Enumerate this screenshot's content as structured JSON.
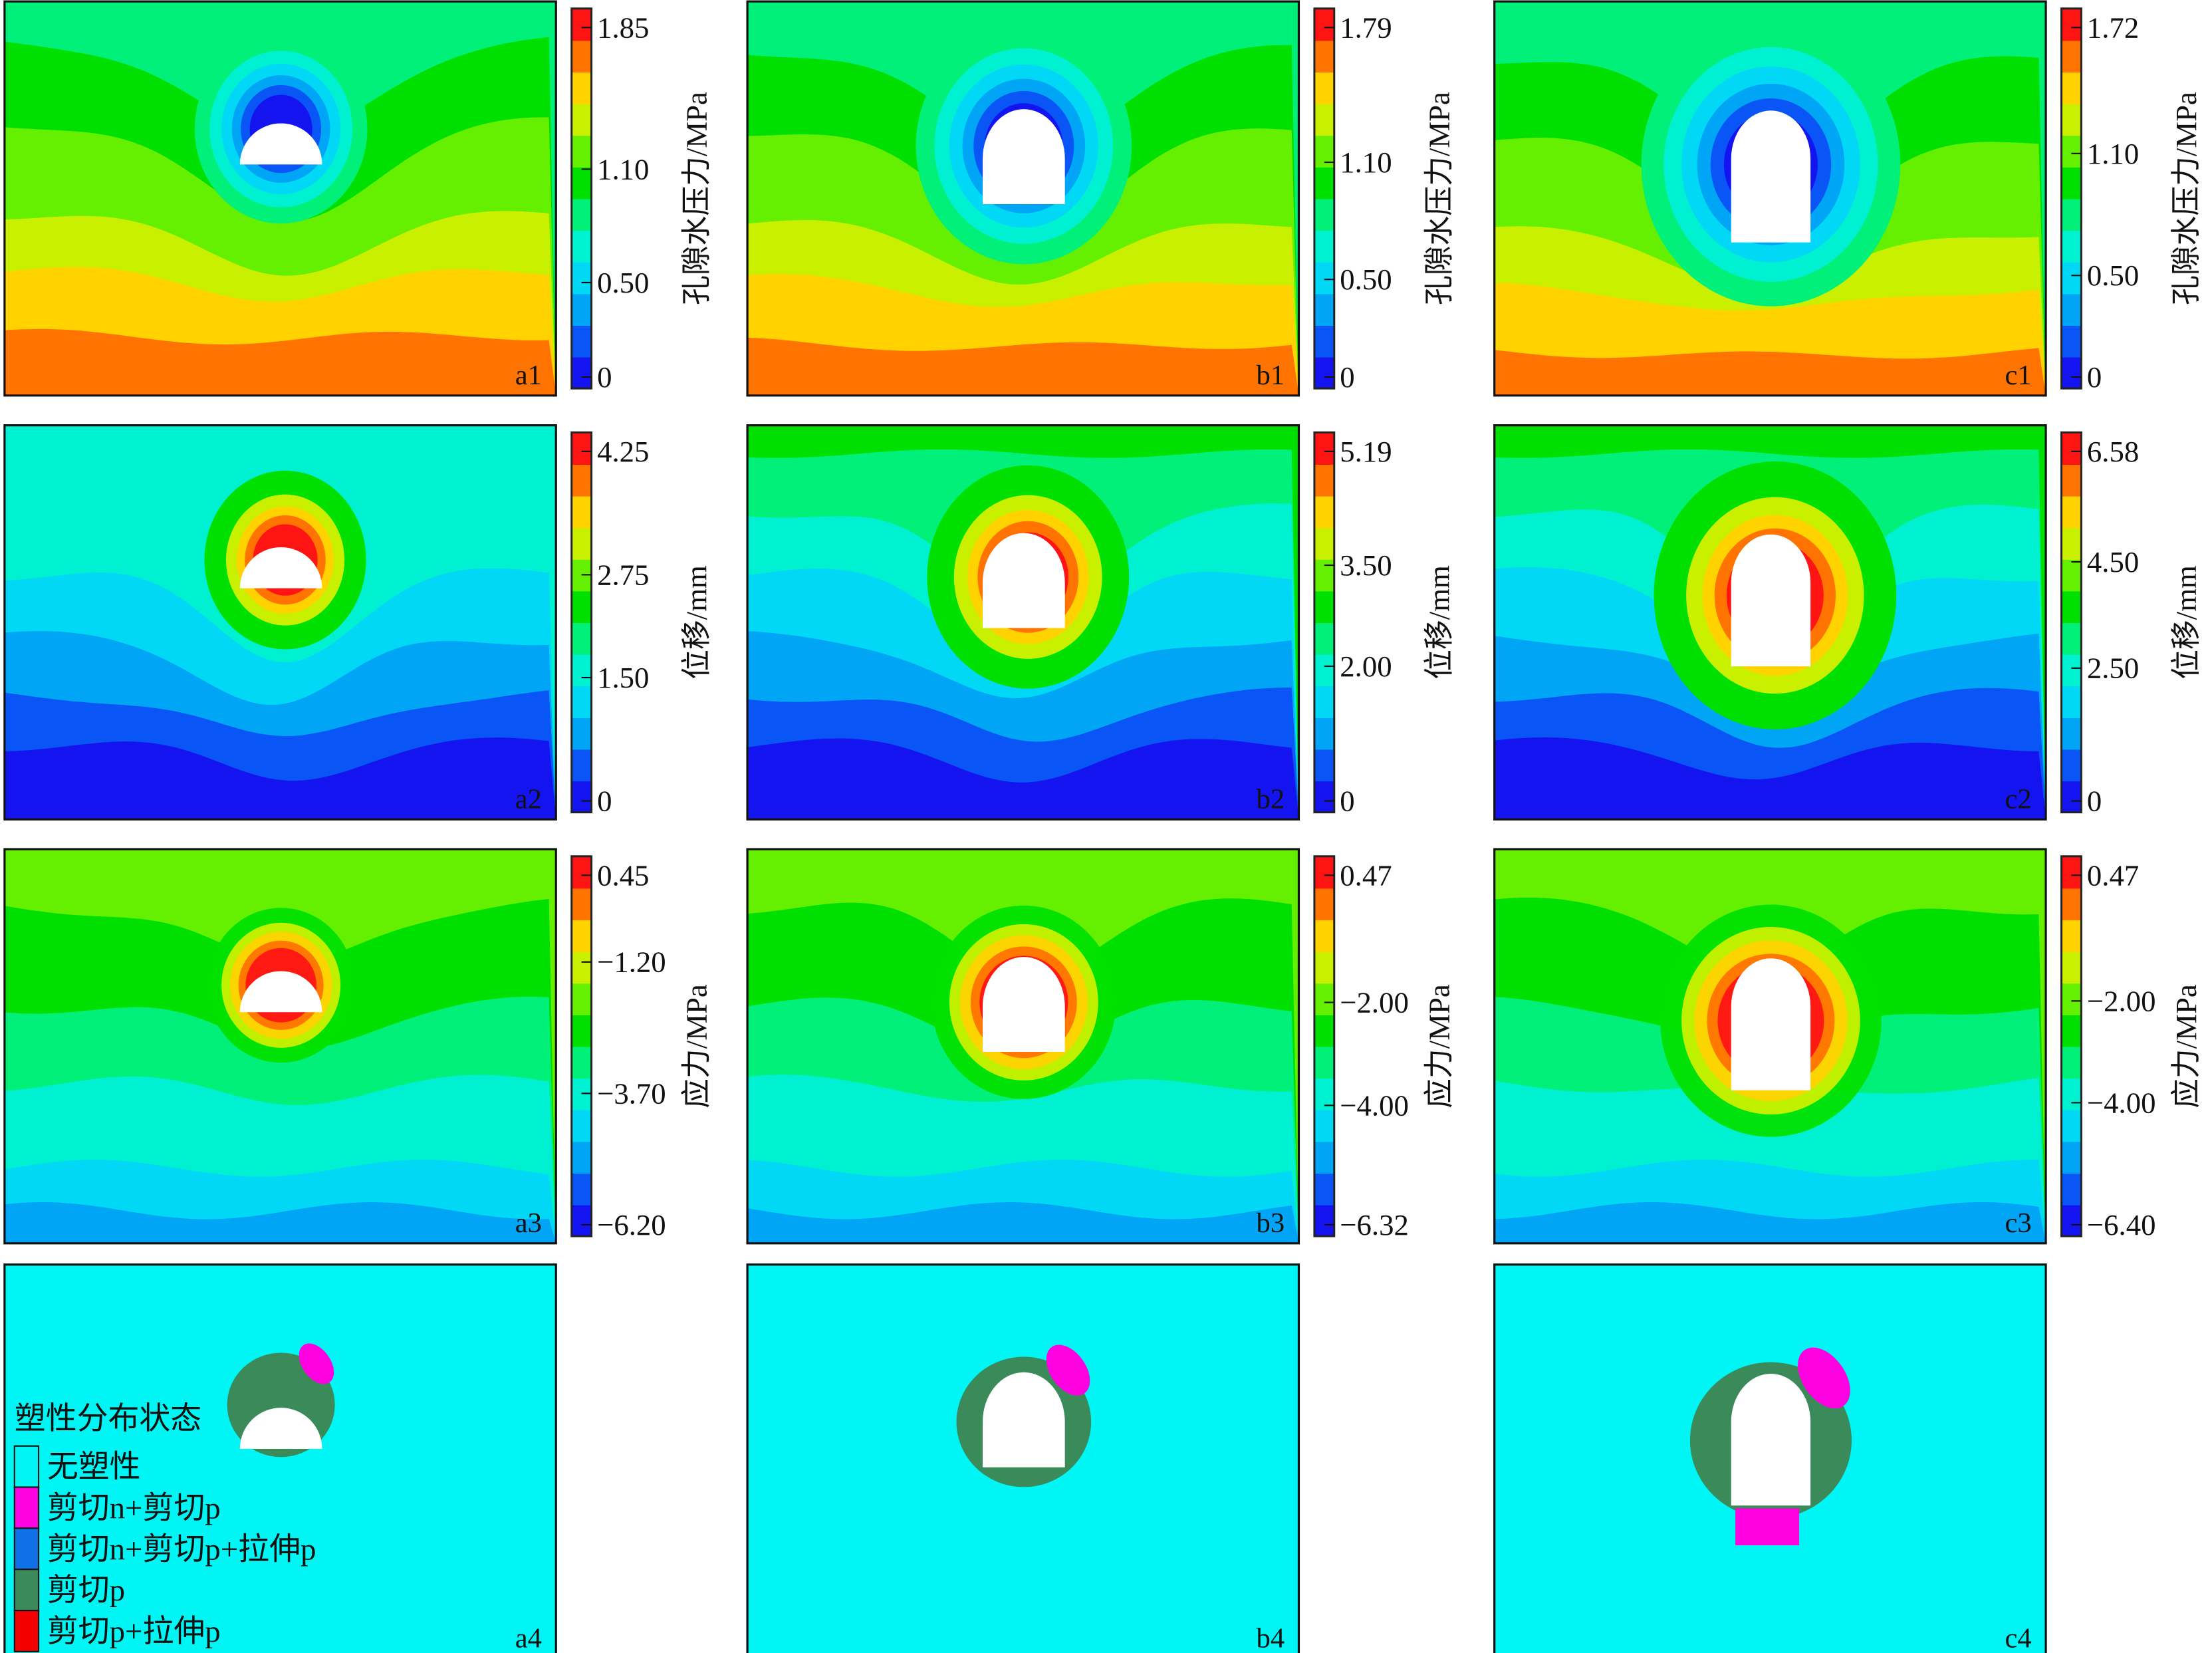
{
  "chart_data": {
    "type": "heatmap",
    "title": "",
    "palette": [
      "#1414f0",
      "#0a55f5",
      "#00a5f5",
      "#00d8f5",
      "#00f0d2",
      "#00f07a",
      "#00e000",
      "#64f000",
      "#c8f000",
      "#ffd200",
      "#ff7300",
      "#ff1414"
    ],
    "rows": [
      {
        "quantity": "孔隙水压力/MPa",
        "panels": [
          {
            "label": "a1",
            "ticks": [
              "1.85",
              "1.10",
              "0.50",
              "0"
            ],
            "tick_values": [
              1.85,
              1.1,
              0.5,
              0
            ],
            "range": [
              0,
              1.85
            ]
          },
          {
            "label": "b1",
            "ticks": [
              "1.79",
              "1.10",
              "0.50",
              "0"
            ],
            "tick_values": [
              1.79,
              1.1,
              0.5,
              0
            ],
            "range": [
              0,
              1.79
            ]
          },
          {
            "label": "c1",
            "ticks": [
              "1.72",
              "1.10",
              "0.50",
              "0"
            ],
            "tick_values": [
              1.72,
              1.1,
              0.5,
              0
            ],
            "range": [
              0,
              1.72
            ]
          }
        ]
      },
      {
        "quantity": "位移/mm",
        "panels": [
          {
            "label": "a2",
            "ticks": [
              "4.25",
              "2.75",
              "1.50",
              "0"
            ],
            "tick_values": [
              4.25,
              2.75,
              1.5,
              0
            ],
            "range": [
              0,
              4.25
            ]
          },
          {
            "label": "b2",
            "ticks": [
              "5.19",
              "3.50",
              "2.00",
              "0"
            ],
            "tick_values": [
              5.19,
              3.5,
              2.0,
              0
            ],
            "range": [
              0,
              5.19
            ]
          },
          {
            "label": "c2",
            "ticks": [
              "6.58",
              "4.50",
              "2.50",
              "0"
            ],
            "tick_values": [
              6.58,
              4.5,
              2.5,
              0
            ],
            "range": [
              0,
              6.58
            ]
          }
        ]
      },
      {
        "quantity": "应力/MPa",
        "panels": [
          {
            "label": "a3",
            "ticks": [
              "0.45",
              "−1.20",
              "−3.70",
              "−6.20"
            ],
            "tick_values": [
              0.45,
              -1.2,
              -3.7,
              -6.2
            ],
            "range": [
              -6.2,
              0.45
            ]
          },
          {
            "label": "b3",
            "ticks": [
              "0.47",
              "−2.00",
              "−4.00",
              "−6.32"
            ],
            "tick_values": [
              0.47,
              -2.0,
              -4.0,
              -6.32
            ],
            "range": [
              -6.32,
              0.47
            ]
          },
          {
            "label": "c3",
            "ticks": [
              "0.47",
              "−2.00",
              "−4.00",
              "−6.40"
            ],
            "tick_values": [
              0.47,
              -2.0,
              -4.0,
              -6.4
            ],
            "range": [
              -6.4,
              0.47
            ]
          }
        ]
      },
      {
        "quantity": "塑性分布状态",
        "panels": [
          {
            "label": "a4"
          },
          {
            "label": "b4"
          },
          {
            "label": "c4"
          }
        ]
      }
    ],
    "legend": {
      "title": "塑性分布状态",
      "placement": "bottom-left of a4",
      "items": [
        {
          "label": "无塑性",
          "color": "#00f5f5"
        },
        {
          "label": "剪切n+剪切p",
          "color": "#ff00e0"
        },
        {
          "label": "剪切n+剪切p+拉伸p",
          "color": "#1070e8"
        },
        {
          "label": "剪切p",
          "color": "#3a8a5a"
        },
        {
          "label": "剪切p+拉伸p",
          "color": "#f50000"
        }
      ]
    }
  }
}
